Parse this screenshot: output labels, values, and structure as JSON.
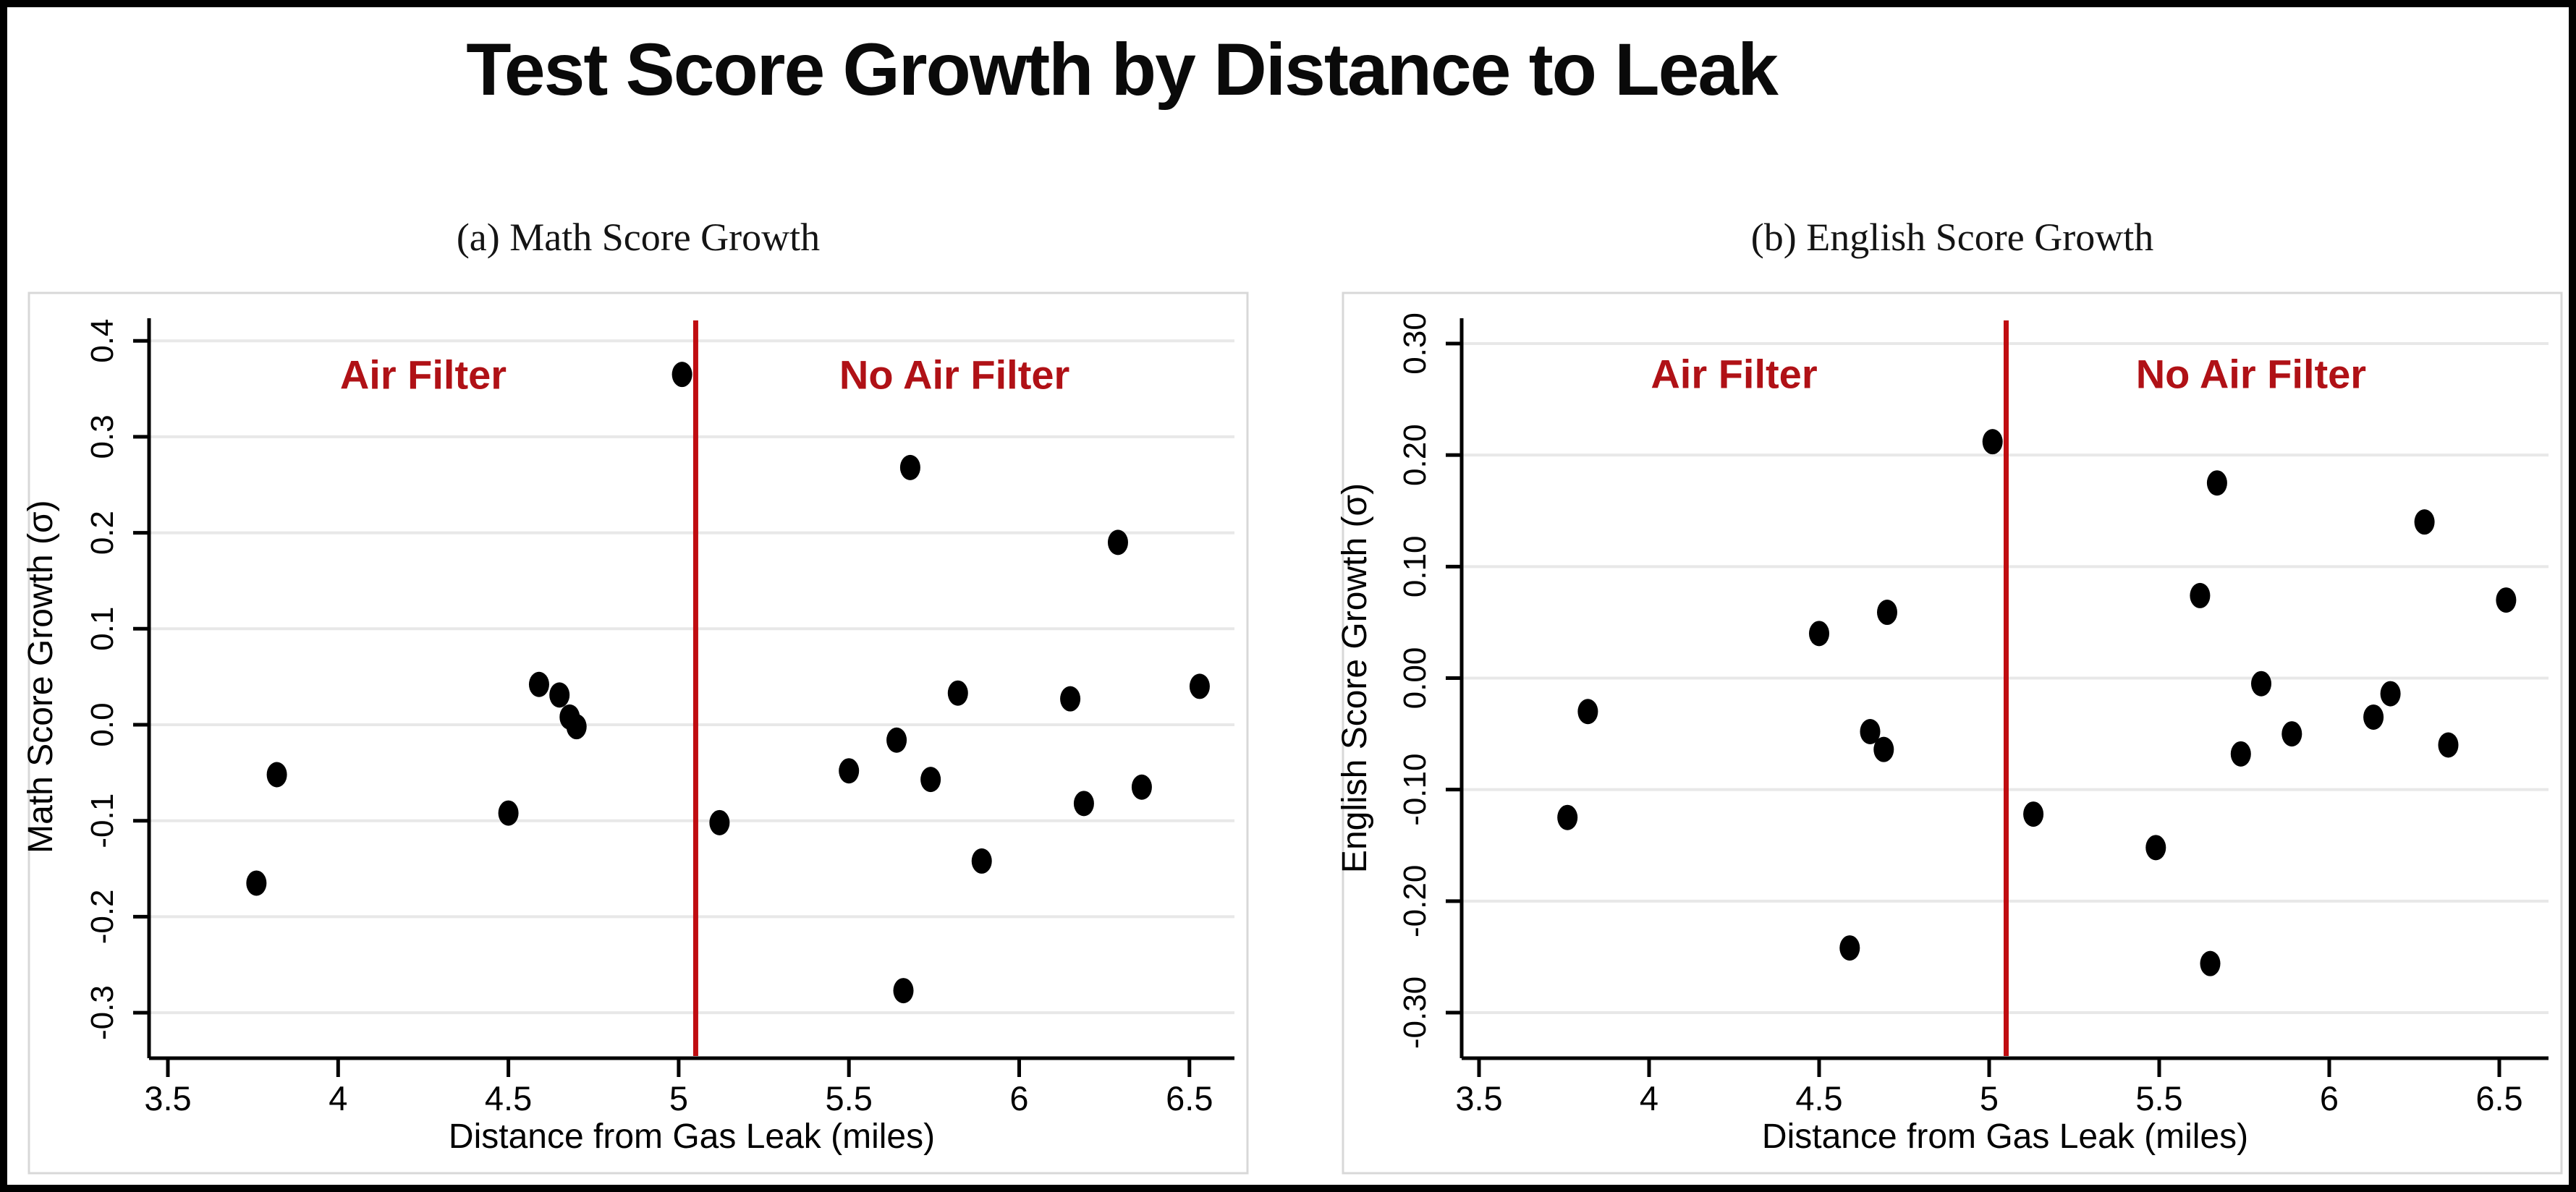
{
  "page": {
    "title": "Test Score Growth by Distance to Leak"
  },
  "colors": {
    "accent_red_text": "#b01116",
    "divider_red_line": "#c00d11",
    "marker_black": "#000000",
    "gridline_gray": "#e8e8e8",
    "axis_black": "#000000",
    "panel_border_gray": "#d8d8d8"
  },
  "chart_data": [
    {
      "type": "scatter",
      "panel_label": "(a) Math Score Growth",
      "xlabel": "Distance from Gas Leak (miles)",
      "ylabel": "Math Score Growth (σ)",
      "xlim": [
        3.35,
        6.65
      ],
      "ylim": [
        -0.35,
        0.42
      ],
      "grid": true,
      "legend": "none",
      "x_ticks": [
        3.5,
        4,
        4.5,
        5,
        5.5,
        6,
        6.5
      ],
      "x_tick_labels": [
        "3.5",
        "4",
        "4.5",
        "5",
        "5.5",
        "6",
        "6.5"
      ],
      "y_ticks": [
        0.4,
        0.3,
        0.2,
        0.1,
        0.0,
        -0.1,
        -0.2,
        -0.3
      ],
      "y_tick_labels": [
        "0.4",
        "0.3",
        "0.2",
        "0.1",
        "0.0",
        "-0.1",
        "-0.2",
        "-0.3"
      ],
      "vline_x": 5.05,
      "annotations": [
        {
          "text": "Air Filter",
          "x": 4.25,
          "y": 0.35
        },
        {
          "text": "No Air Filter",
          "x": 5.81,
          "y": 0.35
        }
      ],
      "series": [
        {
          "name": "Air Filter schools",
          "points": [
            [
              3.76,
              -0.165
            ],
            [
              3.82,
              -0.052
            ],
            [
              4.5,
              -0.092
            ],
            [
              4.59,
              0.042
            ],
            [
              4.65,
              0.031
            ],
            [
              4.68,
              0.008
            ],
            [
              4.7,
              -0.002
            ],
            [
              5.01,
              0.365
            ]
          ]
        },
        {
          "name": "No Air Filter schools",
          "points": [
            [
              5.12,
              -0.102
            ],
            [
              5.5,
              -0.048
            ],
            [
              5.64,
              -0.016
            ],
            [
              5.66,
              -0.277
            ],
            [
              5.68,
              0.268
            ],
            [
              5.74,
              -0.057
            ],
            [
              5.82,
              0.033
            ],
            [
              5.89,
              -0.142
            ],
            [
              6.15,
              0.027
            ],
            [
              6.19,
              -0.082
            ],
            [
              6.29,
              0.19
            ],
            [
              6.36,
              -0.065
            ],
            [
              6.53,
              0.04
            ]
          ]
        }
      ]
    },
    {
      "type": "scatter",
      "panel_label": "(b) English Score Growth",
      "xlabel": "Distance from Gas Leak (miles)",
      "ylabel": "English Score Growth (σ)",
      "xlim": [
        3.35,
        6.65
      ],
      "ylim": [
        -0.34,
        0.32
      ],
      "grid": true,
      "legend": "none",
      "x_ticks": [
        3.5,
        4,
        4.5,
        5,
        5.5,
        6,
        6.5
      ],
      "x_tick_labels": [
        "3.5",
        "4",
        "4.5",
        "5",
        "5.5",
        "6",
        "6.5"
      ],
      "y_ticks": [
        0.3,
        0.2,
        0.1,
        0.0,
        -0.1,
        -0.2,
        -0.3
      ],
      "y_tick_labels": [
        "0.30",
        "0.20",
        "0.10",
        "0.00",
        "-0.10",
        "-0.20",
        "-0.30"
      ],
      "vline_x": 5.05,
      "annotations": [
        {
          "text": "Air Filter",
          "x": 4.25,
          "y": 0.26
        },
        {
          "text": "No Air Filter",
          "x": 5.77,
          "y": 0.26
        }
      ],
      "series": [
        {
          "name": "Air Filter schools",
          "points": [
            [
              3.76,
              -0.125
            ],
            [
              3.82,
              -0.03
            ],
            [
              4.5,
              0.04
            ],
            [
              4.59,
              -0.242
            ],
            [
              4.65,
              -0.048
            ],
            [
              4.69,
              -0.064
            ],
            [
              4.7,
              0.059
            ],
            [
              5.01,
              0.212
            ]
          ]
        },
        {
          "name": "No Air Filter schools",
          "points": [
            [
              5.13,
              -0.122
            ],
            [
              5.49,
              -0.152
            ],
            [
              5.62,
              0.074
            ],
            [
              5.65,
              -0.256
            ],
            [
              5.67,
              0.175
            ],
            [
              5.74,
              -0.068
            ],
            [
              5.8,
              -0.005
            ],
            [
              5.89,
              -0.05
            ],
            [
              6.13,
              -0.035
            ],
            [
              6.18,
              -0.014
            ],
            [
              6.28,
              0.14
            ],
            [
              6.35,
              -0.06
            ],
            [
              6.52,
              0.07
            ]
          ]
        }
      ]
    }
  ]
}
